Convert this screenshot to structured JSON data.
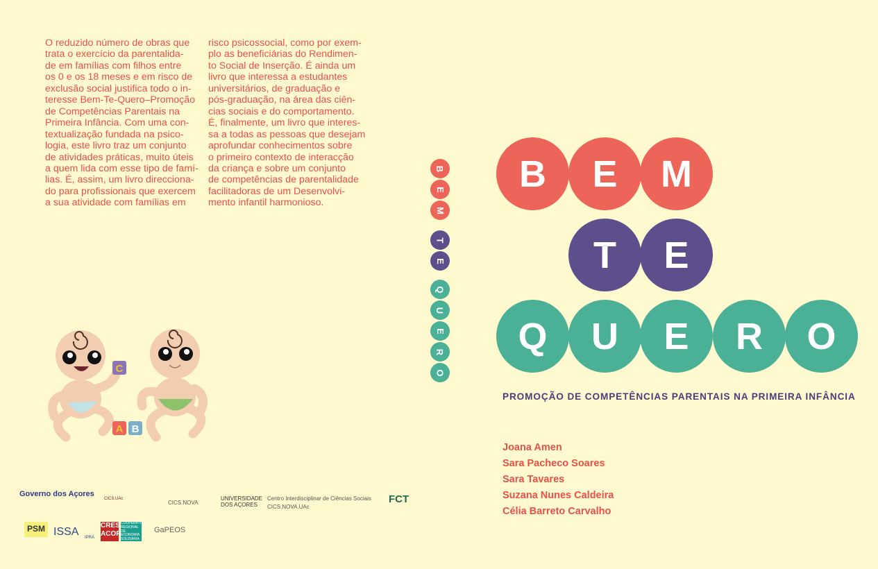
{
  "back_cover": {
    "column_left": [
      "O reduzido número de obras que",
      "trata o exercício da parentalida-",
      "de em famílias com filhos entre",
      "os 0 e os 18 meses e em risco de",
      "exclusão social justifica todo o in-",
      "teresse Bem-Te-Quero–Promoção",
      "de Competências Parentais na",
      "Primeira Infância. Com uma con-",
      "textualização fundada na psico-",
      "logia, este livro traz um conjunto",
      "de atividades práticas, muito úteis",
      "a quem lida com esse tipo de famí-",
      "lias. É, assim, um livro direcciona-",
      "do para profissionais que exercem",
      "a sua atividade com famílias em"
    ],
    "column_right": [
      "risco psicossocial, como por exem-",
      "plo as beneficiárias do Rendimen-",
      "to Social de Inserção. É ainda um",
      "livro que interessa a estudantes",
      "universitários, de graduação e",
      "pós-graduação, na área das ciên-",
      "cias sociais e do comportamento.",
      "É, finalmente, um livro que interes-",
      "sa a todas as pessoas que desejam",
      "aprofundar conhecimentos sobre",
      "o primeiro contexto de interacção",
      "da criança e sobre um conjunto",
      "de competências de parentalidade",
      "facilitadoras de um Desenvolvi-",
      "mento infantil harmonioso."
    ],
    "blocks": [
      "C",
      "A",
      "B"
    ],
    "logos": [
      "Governo dos Açores",
      "CICS.UAc",
      "CICS.NOVA",
      "UNIVERSIDADE DOS AÇORES",
      "Centro Interdisciplinar de Ciências Sociais",
      "CICS.NOVA.UAc",
      "FCT",
      "PSM",
      "ISSA",
      "IPRA",
      "CRES ACOR",
      "COOPERATIVA REGIONAL DE ECONOMIA SOLIDÁRIA",
      "GaPEOS"
    ]
  },
  "spine": {
    "letters": [
      "B",
      "E",
      "M",
      "T",
      "E",
      "Q",
      "U",
      "E",
      "R",
      "O"
    ]
  },
  "front_cover": {
    "title_rows": [
      [
        "B",
        "E",
        "M"
      ],
      [
        "T",
        "E"
      ],
      [
        "Q",
        "U",
        "E",
        "R",
        "O"
      ]
    ],
    "subtitle": "PROMOÇÃO DE COMPETÊNCIAS PARENTAIS NA PRIMEIRA INFÂNCIA",
    "authors": [
      "Joana Amen",
      "Sara Pacheco Soares",
      "Sara Tavares",
      "Suzana Nunes Caldeira",
      "Célia Barreto Carvalho"
    ]
  },
  "colors": {
    "background": "#fff9cf",
    "red": "#ed6558",
    "purple": "#5c4f8c",
    "teal": "#4ab096",
    "text": "#e8504a",
    "subtitle": "#4a3d7a"
  }
}
